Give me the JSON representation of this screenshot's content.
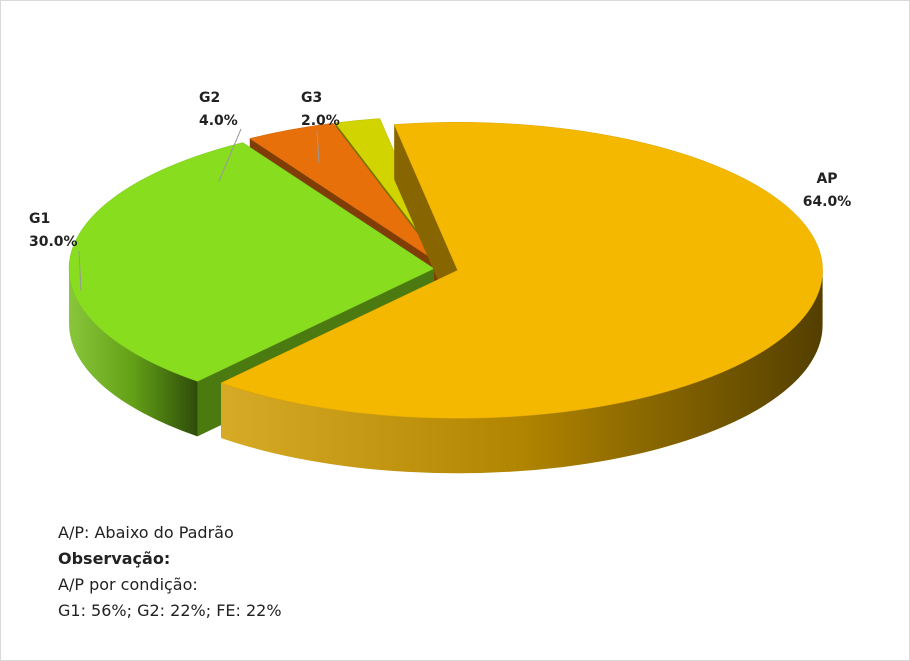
{
  "chart_data": {
    "type": "pie",
    "categories": [
      "AP",
      "G1",
      "G2",
      "G3"
    ],
    "values": [
      64,
      30,
      4,
      2
    ],
    "value_labels": [
      "64.0%",
      "30.0%",
      "4.0%",
      "2.0%"
    ],
    "colors": [
      "#f5b800",
      "#88dd1e",
      "#e8700a",
      "#d2d400"
    ],
    "notes": [
      "A/P: Abaixo do Padrão",
      "Observação:",
      "A/P por condição:",
      "G1: 56%;  G2: 22%; FE: 22%"
    ]
  }
}
